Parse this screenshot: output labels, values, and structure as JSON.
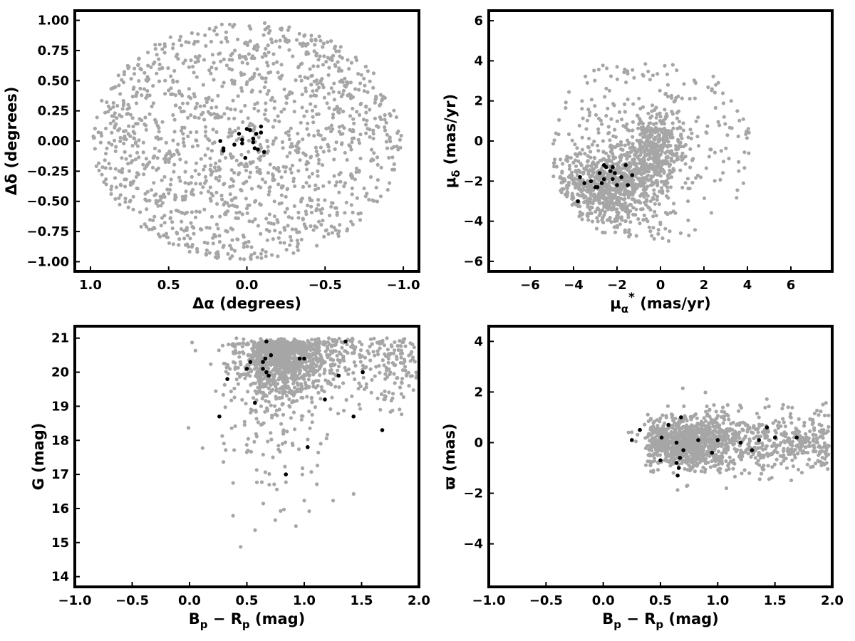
{
  "figure": {
    "background": "#ffffff",
    "field_color": "#a6a6a6",
    "member_color": "#000000"
  },
  "chart_data": [
    {
      "type": "scatter",
      "xlabel": "Δα (degrees)",
      "ylabel": "Δδ (degrees)",
      "xlim": [
        1.1,
        -1.1
      ],
      "ylim": [
        -1.08,
        1.08
      ],
      "x_inverted": true,
      "xticks": [
        1.0,
        0.5,
        0.0,
        -0.5,
        -1.0
      ],
      "xtick_labels": [
        "1.0",
        "0.5",
        "0.0",
        "−0.5",
        "−1.0"
      ],
      "yticks": [
        1.0,
        0.75,
        0.5,
        0.25,
        0.0,
        -0.25,
        -0.5,
        -0.75,
        -1.0
      ],
      "ytick_labels": [
        "1.00",
        "0.75",
        "0.50",
        "0.25",
        "0.00",
        "−0.25",
        "−0.50",
        "−0.75",
        "−1.00"
      ],
      "grid": false,
      "field_stars": {
        "color": "#a6a6a6",
        "count": 1400,
        "distribution": "uniform disk, radius 1.0 deg, centered at (0, 0)"
      },
      "series": [
        {
          "color": "#000000",
          "x": [
            0.17,
            0.15,
            0.15,
            0.08,
            0.05,
            0.03,
            0.0,
            -0.02,
            -0.04,
            -0.05,
            -0.06,
            -0.07,
            -0.09,
            -0.09,
            -0.11,
            -0.04,
            0.01,
            0.03
          ],
          "y": [
            0.0,
            -0.06,
            -0.08,
            -0.03,
            0.06,
            0.01,
            0.1,
            0.09,
            -0.01,
            -0.06,
            0.06,
            -0.07,
            0.07,
            0.12,
            -0.09,
            0.02,
            -0.14,
            -0.02
          ]
        }
      ]
    },
    {
      "type": "scatter",
      "xlabel": "μα* (mas/yr)",
      "ylabel": "μδ (mas/yr)",
      "xlim": [
        -7.9,
        7.9
      ],
      "ylim": [
        -6.5,
        6.5
      ],
      "xticks": [
        -6,
        -4,
        -2,
        0,
        2,
        4,
        6
      ],
      "xtick_labels": [
        "−6",
        "−4",
        "−2",
        "0",
        "2",
        "4",
        "6"
      ],
      "yticks": [
        -6,
        -4,
        -2,
        0,
        2,
        4,
        6
      ],
      "ytick_labels": [
        "−6",
        "−4",
        "−2",
        "0",
        "2",
        "4",
        "6"
      ],
      "grid": false,
      "field_stars": {
        "color": "#a6a6a6",
        "count": 1400,
        "distribution": "dense clump near (-2.5, -2.5) and (-0.3, -0.5), bounded by circle of radius 5 around (-0.5, -0.5)"
      },
      "series": [
        {
          "color": "#000000",
          "x": [
            -3.8,
            -3.7,
            -3.5,
            -3.2,
            -3.0,
            -2.9,
            -2.8,
            -2.7,
            -2.6,
            -2.5,
            -2.3,
            -2.2,
            -2.2,
            -2.1,
            -2.0,
            -1.8,
            -1.6,
            -1.5,
            -1.3,
            -2.6
          ],
          "y": [
            -3.0,
            -1.8,
            -2.1,
            -2.0,
            -2.3,
            -2.3,
            -1.6,
            -2.1,
            -1.2,
            -1.3,
            -1.5,
            -1.3,
            -1.9,
            -1.6,
            -2.2,
            -1.8,
            -1.2,
            -2.2,
            -1.7,
            -1.9
          ]
        }
      ]
    },
    {
      "type": "scatter",
      "xlabel": "Bp − Rp (mag)",
      "ylabel": "G (mag)",
      "xlim": [
        -1.0,
        2.0
      ],
      "ylim": [
        13.7,
        21.35
      ],
      "yticks": [
        14,
        15,
        16,
        17,
        18,
        19,
        20,
        21
      ],
      "ytick_labels": [
        "14",
        "15",
        "16",
        "17",
        "18",
        "19",
        "20",
        "21"
      ],
      "xticks": [
        -1.0,
        -0.5,
        0.0,
        0.5,
        1.0,
        1.5,
        2.0
      ],
      "xtick_labels": [
        "−1.0",
        "−0.5",
        "0.0",
        "0.5",
        "1.0",
        "1.5",
        "2.0"
      ],
      "grid": false,
      "field_stars": {
        "color": "#a6a6a6",
        "count": 1400,
        "distribution": "dense near G 20-21 at Bp-Rp 0.5-1.0, faint limit G≈21, sparse bright tail"
      },
      "series": [
        {
          "color": "#000000",
          "x": [
            0.26,
            0.33,
            0.5,
            0.53,
            0.57,
            0.64,
            0.66,
            0.67,
            0.67,
            0.69,
            0.71,
            0.84,
            0.96,
            1.0,
            1.03,
            1.18,
            1.3,
            1.36,
            1.43,
            1.51,
            1.68,
            0.64
          ],
          "y": [
            18.7,
            19.8,
            20.1,
            20.3,
            19.1,
            20.1,
            20.4,
            20.9,
            20.0,
            19.9,
            20.5,
            17.0,
            20.4,
            20.4,
            17.8,
            19.2,
            19.9,
            20.9,
            18.7,
            20.0,
            18.3,
            20.3
          ]
        }
      ]
    },
    {
      "type": "scatter",
      "xlabel": "Bp − Rp (mag)",
      "ylabel": "ϖ (mas)",
      "xlim": [
        -1.0,
        2.0
      ],
      "ylim": [
        -5.7,
        4.6
      ],
      "yticks": [
        -4,
        -2,
        0,
        2,
        4
      ],
      "ytick_labels": [
        "−4",
        "−2",
        "0",
        "2",
        "4"
      ],
      "xticks": [
        -1.0,
        -0.5,
        0.0,
        0.5,
        1.0,
        1.5,
        2.0
      ],
      "xtick_labels": [
        "−1.0",
        "−0.5",
        "0.0",
        "0.5",
        "1.0",
        "1.5",
        "2.0"
      ],
      "grid": false,
      "field_stars": {
        "color": "#a6a6a6",
        "count": 1400,
        "distribution": "dense band centered on 0 mas from Bp-Rp 0.4-2.0, scatter ±2 mas"
      },
      "series": [
        {
          "color": "#000000",
          "x": [
            0.25,
            0.32,
            0.5,
            0.51,
            0.57,
            0.64,
            0.65,
            0.66,
            0.67,
            0.68,
            0.7,
            0.83,
            0.95,
            1.0,
            1.2,
            1.3,
            1.36,
            1.43,
            1.5,
            1.69,
            0.64
          ],
          "y": [
            0.1,
            0.5,
            -0.7,
            0.2,
            0.7,
            0.0,
            -1.3,
            -1.0,
            -0.6,
            1.0,
            -0.3,
            0.1,
            -0.4,
            0.1,
            0.0,
            -0.3,
            0.1,
            0.6,
            0.2,
            0.2,
            -0.8
          ]
        }
      ]
    }
  ]
}
